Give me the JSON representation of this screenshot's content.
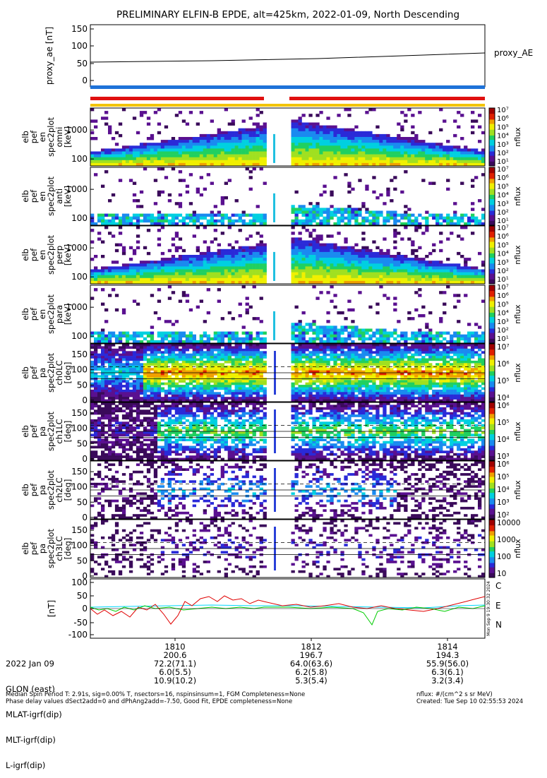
{
  "title": "PRELIMINARY ELFIN-B EPDE, alt=425km, 2022-01-09, North Descending",
  "proxy_panel": {
    "ylabel": "proxy_ae [nT]",
    "legend": "proxy_AE",
    "ticks": [
      "150",
      "100",
      "50",
      "0"
    ]
  },
  "spec_panels": [
    {
      "ylabel": [
        "elb",
        "pef",
        "en",
        "spec2plot",
        "omni",
        "[keV]"
      ],
      "ticks": [
        "1000",
        "100"
      ],
      "cb_label": "nflux"
    },
    {
      "ylabel": [
        "elb",
        "pef",
        "en",
        "spec2plot",
        "anti",
        "[keV]"
      ],
      "ticks": [
        "1000",
        "100"
      ],
      "cb_label": "nflux"
    },
    {
      "ylabel": [
        "elb",
        "pef",
        "en",
        "spec2plot",
        "perp",
        "[keV]"
      ],
      "ticks": [
        "1000",
        "100"
      ],
      "cb_label": "nflux"
    },
    {
      "ylabel": [
        "elb",
        "pef",
        "en",
        "spec2plot",
        "para",
        "[keV]"
      ],
      "ticks": [
        "1000",
        "100"
      ],
      "cb_label": "nflux"
    }
  ],
  "pa_panels": [
    {
      "ylabel": [
        "elb",
        "pef",
        "pa",
        "spec2plot",
        "ch0LC",
        "[deg]"
      ],
      "ticks": [
        "150",
        "100",
        "50",
        "0"
      ],
      "cb_label": "nflux",
      "cb_ticks": [
        "10⁷",
        "10⁶",
        "10⁵",
        "10⁴"
      ]
    },
    {
      "ylabel": [
        "elb",
        "pef",
        "pa",
        "spec2plot",
        "ch1LC",
        "[deg]"
      ],
      "ticks": [
        "150",
        "100",
        "50",
        "0"
      ],
      "cb_label": "nflux",
      "cb_ticks": [
        "10⁶",
        "10⁵",
        "10⁴",
        "10³"
      ]
    },
    {
      "ylabel": [
        "elb",
        "pef",
        "pa",
        "spec2plot",
        "ch2LC",
        "[deg]"
      ],
      "ticks": [
        "150",
        "100",
        "50",
        "0"
      ],
      "cb_label": "nflux",
      "cb_ticks": [
        "10⁶",
        "10⁵",
        "10⁴",
        "10³",
        "10²"
      ]
    },
    {
      "ylabel": [
        "elb",
        "pef",
        "pa",
        "spec2plot",
        "ch3LC",
        "[deg]"
      ],
      "ticks": [
        "150",
        "100",
        "50",
        "0"
      ],
      "cb_label": "nflux",
      "cb_ticks": [
        "10000",
        "1000",
        "100",
        "10"
      ]
    }
  ],
  "spec_cb_ticks": [
    "10⁷",
    "10⁶",
    "10⁵",
    "10⁴",
    "10³",
    "10²",
    "10¹"
  ],
  "mag_panel": {
    "ylabel": "[nT]",
    "ticks": [
      "100",
      "50",
      "0",
      "-50",
      "-100"
    ],
    "labels": [
      {
        "text": "C",
        "color": "#00d8ff"
      },
      {
        "text": "E",
        "color": "#e00000"
      },
      {
        "text": "N",
        "color": "#00cc00"
      }
    ],
    "side_text": "Mon Sep 9 19:30:32 2024"
  },
  "footer": {
    "rows": [
      {
        "label": "2022 Jan 09",
        "values": [
          "1810",
          "1812",
          "1814"
        ]
      },
      {
        "label": "GLON (east)",
        "values": [
          "200.6",
          "196.7",
          "194.3"
        ]
      },
      {
        "label": "MLAT-igrf(dip)",
        "values": [
          "72.2(71.1)",
          "64.0(63.6)",
          "55.9(56.0)"
        ]
      },
      {
        "label": "MLT-igrf(dip)",
        "values": [
          "6.0(5.5)",
          "6.2(5.8)",
          "6.3(6.1)"
        ]
      },
      {
        "label": "L-igrf(dip)",
        "values": [
          "10.9(10.2)",
          "5.3(5.4)",
          "3.2(3.4)"
        ]
      }
    ],
    "note1": "Median Spin Period T: 2.91s, sig=0.00% T, nsectors=16, nspinsinsum=1, FGM Completeness=None",
    "note2": "Phase delay values dSect2add=0 and dPhAng2add=-7.50, Good Fit, EPDE completeness=None",
    "units": "nflux: #/(cm^2 s sr MeV)",
    "created": "Created: Tue Sep 10 02:55:53 2024"
  },
  "chart_data": {
    "type": "heatmap",
    "title": "PRELIMINARY ELFIN-B EPDE, alt=425km, 2022-01-09, North Descending",
    "x_ticks": [
      "1810",
      "1812",
      "1814"
    ],
    "proxy_ae": {
      "name": "proxy_AE",
      "x": [
        "start",
        "end"
      ],
      "values": [
        51,
        79
      ],
      "ylim": [
        0,
        150
      ]
    },
    "energy_spectrograms": {
      "ylim_keV": [
        60,
        6000
      ],
      "log": true,
      "gap": "approx. 18:11:25-18:11:55 (data gap)"
    },
    "pitch_angle_spectrograms": {
      "ylim_deg": [
        0,
        180
      ],
      "reference_lines": [
        70,
        90,
        110
      ]
    },
    "mag": {
      "ylim": [
        -110,
        110
      ],
      "series": [
        "C",
        "E",
        "N"
      ]
    }
  }
}
